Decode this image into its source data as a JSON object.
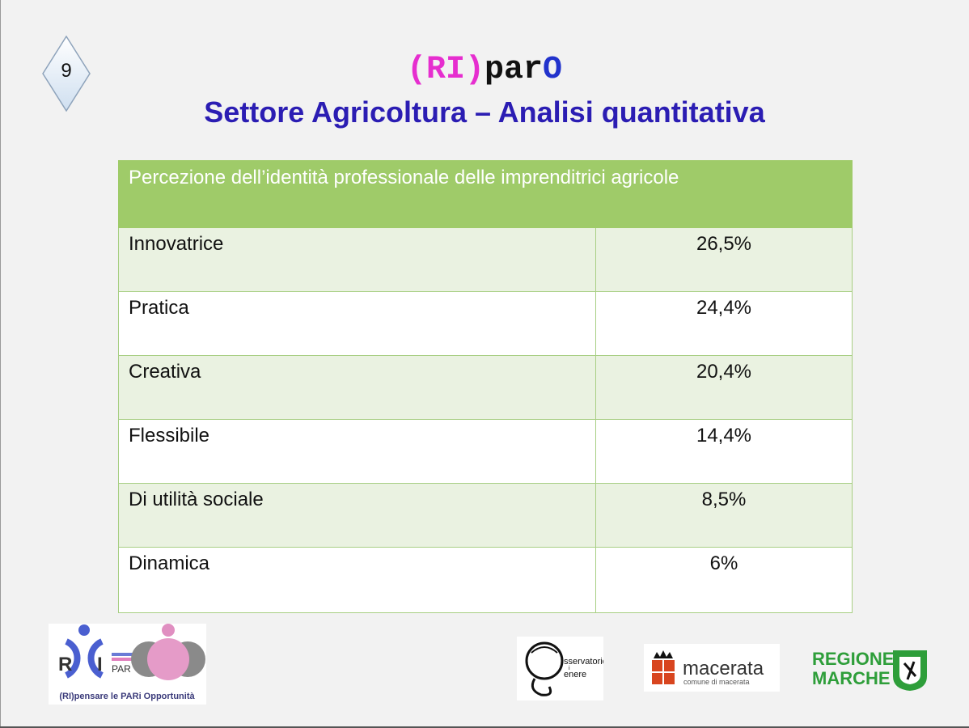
{
  "slide": {
    "number": "9",
    "logo_title": {
      "ri": "(RI)",
      "par": "par",
      "o": "O"
    },
    "subtitle": "Settore Agricoltura – Analisi quantitativa"
  },
  "table": {
    "header": "Percezione dell’identità professionale delle imprenditrici agricole",
    "rows": [
      {
        "label": "Innovatrice",
        "value": "26,5%"
      },
      {
        "label": "Pratica",
        "value": "24,4%"
      },
      {
        "label": "Creativa",
        "value": "20,4%"
      },
      {
        "label": "Flessibile",
        "value": "14,4%"
      },
      {
        "label": "Di utilità sociale",
        "value": "8,5%"
      },
      {
        "label": "Dinamica",
        "value": "6%"
      }
    ]
  },
  "logos": {
    "ripar": {
      "r": "R",
      "i": "I",
      "par": "PAR",
      "tagline": "(RI)pensare le PARi Opportunità"
    },
    "osservatorio": {
      "line1": "sservatorio",
      "line2": "i",
      "line3": "enere"
    },
    "macerata": {
      "name": "macerata",
      "sub": "comune di macerata"
    },
    "regione": {
      "line1": "REGIONE",
      "line2": "MARCHE"
    }
  },
  "colors": {
    "header_green": "#9fcb69",
    "subtitle_blue": "#2b1db3",
    "ri_magenta": "#e62ecf",
    "regione_green": "#2e9e3a"
  }
}
